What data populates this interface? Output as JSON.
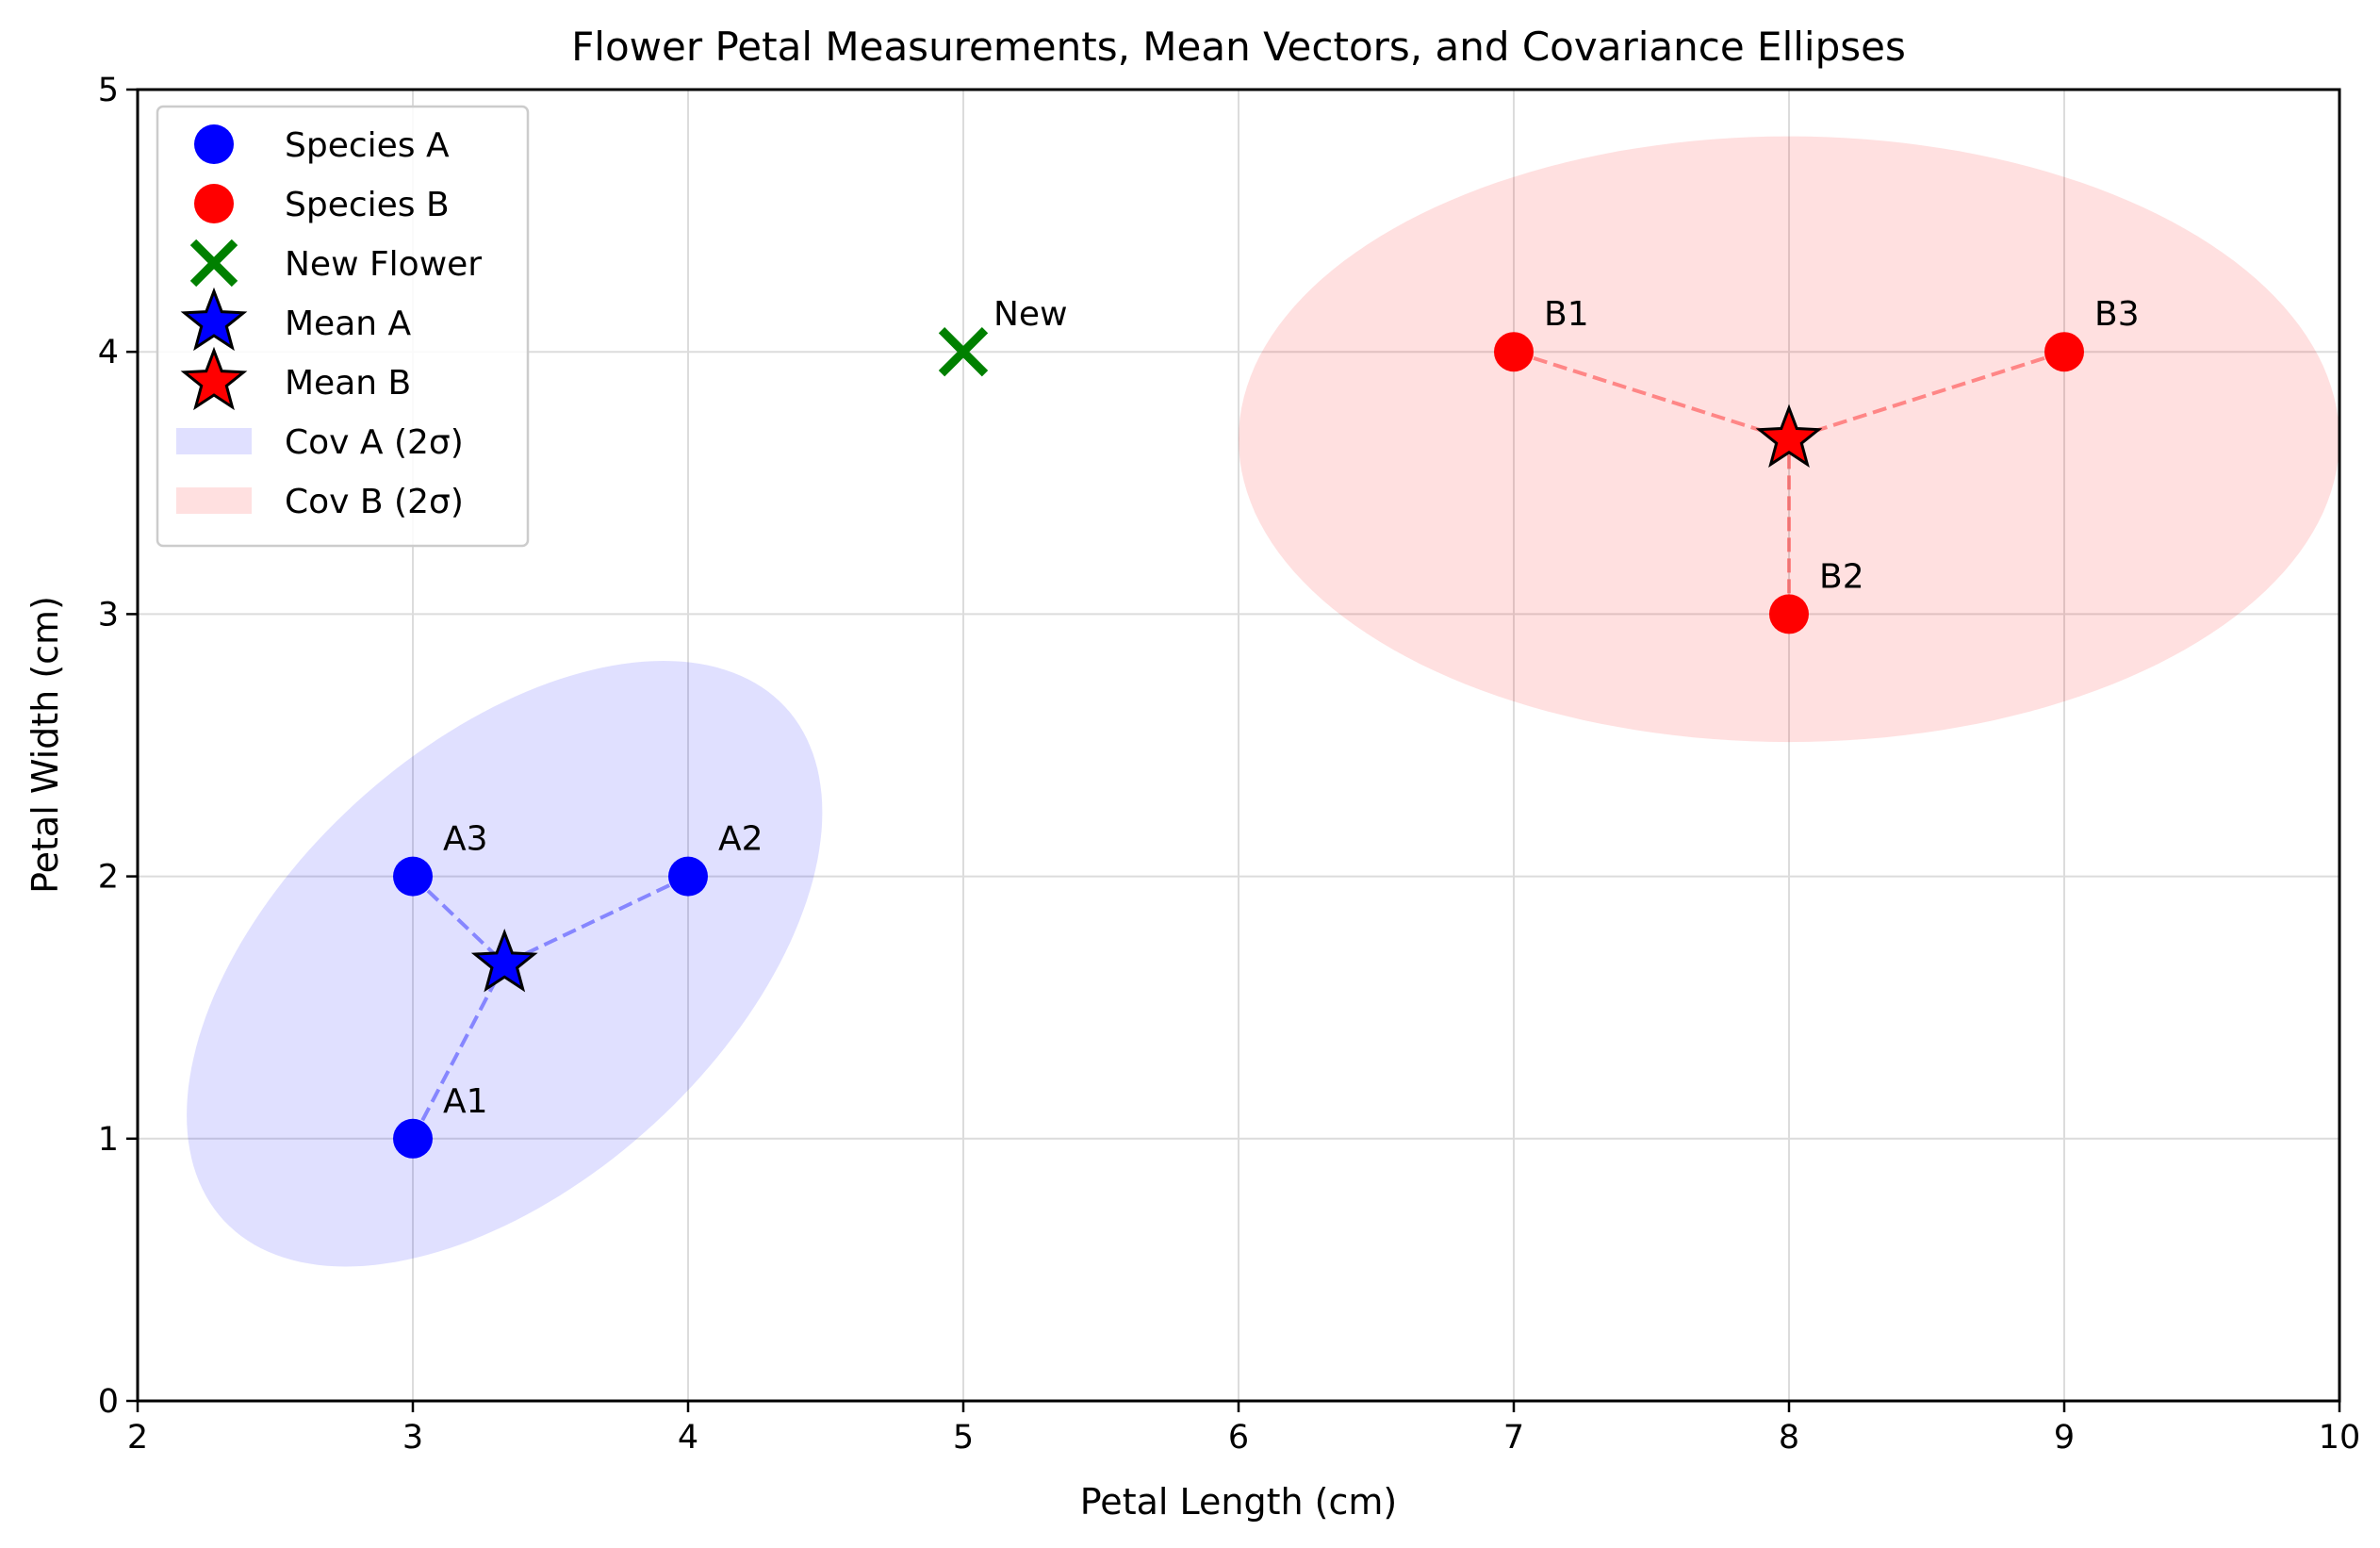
{
  "chart_data": {
    "type": "scatter",
    "title": "Flower Petal Measurements, Mean Vectors, and Covariance Ellipses",
    "xlabel": "Petal Length (cm)",
    "ylabel": "Petal Width (cm)",
    "xlim": [
      2,
      10
    ],
    "ylim": [
      0,
      5
    ],
    "xticks": [
      2,
      3,
      4,
      5,
      6,
      7,
      8,
      9,
      10
    ],
    "yticks": [
      0,
      1,
      2,
      3,
      4,
      5
    ],
    "grid": true,
    "legend_position": "top-left",
    "series": [
      {
        "name": "Species A",
        "kind": "points",
        "marker": "circle",
        "color": "#0000ff",
        "points": [
          {
            "label": "A1",
            "x": 3,
            "y": 1
          },
          {
            "label": "A2",
            "x": 4,
            "y": 2
          },
          {
            "label": "A3",
            "x": 3,
            "y": 2
          }
        ]
      },
      {
        "name": "Species B",
        "kind": "points",
        "marker": "circle",
        "color": "#ff0000",
        "points": [
          {
            "label": "B1",
            "x": 7,
            "y": 4
          },
          {
            "label": "B2",
            "x": 8,
            "y": 3
          },
          {
            "label": "B3",
            "x": 9,
            "y": 4
          }
        ]
      },
      {
        "name": "New Flower",
        "kind": "points",
        "marker": "x",
        "color": "#008000",
        "points": [
          {
            "label": "New",
            "x": 5,
            "y": 4
          }
        ]
      },
      {
        "name": "Mean A",
        "kind": "mean",
        "marker": "star",
        "color": "#0000ff",
        "point": {
          "x": 3.333,
          "y": 1.667
        }
      },
      {
        "name": "Mean B",
        "kind": "mean",
        "marker": "star",
        "color": "#ff0000",
        "point": {
          "x": 8,
          "y": 3.667
        }
      },
      {
        "name": "Cov A (2σ)",
        "kind": "ellipse",
        "color": "#0000ff",
        "alpha": 0.12,
        "center": {
          "x": 3.333,
          "y": 1.667
        },
        "covariance": [
          [
            0.3333,
            0.1667
          ],
          [
            0.1667,
            0.3333
          ]
        ],
        "n_std": 2
      },
      {
        "name": "Cov B (2σ)",
        "kind": "ellipse",
        "color": "#ff0000",
        "alpha": 0.12,
        "center": {
          "x": 8,
          "y": 3.667
        },
        "covariance": [
          [
            1.0,
            0.0
          ],
          [
            0.0,
            0.3333
          ]
        ],
        "n_std": 2
      }
    ],
    "mean_links": [
      {
        "from": "Species A",
        "to": "Mean A",
        "color": "#0000ff"
      },
      {
        "from": "Species B",
        "to": "Mean B",
        "color": "#ff0000"
      }
    ],
    "legend_order": [
      "Species A",
      "Species B",
      "New Flower",
      "Mean A",
      "Mean B",
      "Cov A (2σ)",
      "Cov B (2σ)"
    ]
  }
}
